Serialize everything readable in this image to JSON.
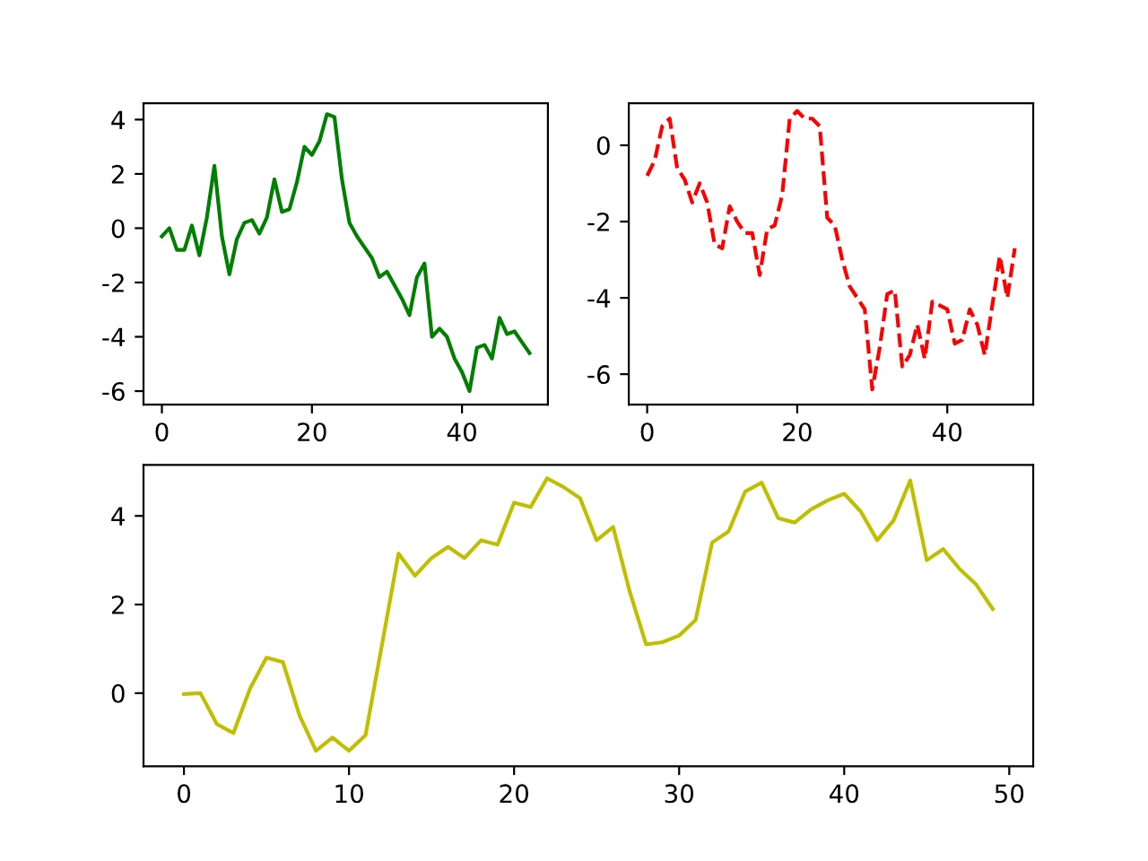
{
  "chart_data": [
    {
      "type": "line",
      "x": [
        0,
        1,
        2,
        3,
        4,
        5,
        6,
        7,
        8,
        9,
        10,
        11,
        12,
        13,
        14,
        15,
        16,
        17,
        18,
        19,
        20,
        21,
        22,
        23,
        24,
        25,
        26,
        27,
        28,
        29,
        30,
        31,
        32,
        33,
        34,
        35,
        36,
        37,
        38,
        39,
        40,
        41,
        42,
        43,
        44,
        45,
        46,
        47,
        48,
        49
      ],
      "series": [
        {
          "color": "#008000",
          "line_style": "solid",
          "values": [
            -0.3,
            0.0,
            -0.8,
            -0.8,
            0.1,
            -1.0,
            0.4,
            2.3,
            -0.3,
            -1.7,
            -0.4,
            0.2,
            0.3,
            -0.2,
            0.4,
            1.8,
            0.6,
            0.7,
            1.7,
            3.0,
            2.7,
            3.2,
            4.2,
            4.1,
            1.8,
            0.2,
            -0.3,
            -0.7,
            -1.1,
            -1.8,
            -1.6,
            -2.1,
            -2.6,
            -3.2,
            -1.8,
            -1.3,
            -4.0,
            -3.7,
            -4.0,
            -4.8,
            -5.3,
            -6.0,
            -4.4,
            -4.3,
            -4.8,
            -3.3,
            -3.9,
            -3.8,
            -4.2,
            -4.6
          ]
        }
      ],
      "xlim": [
        -2.45,
        51.45
      ],
      "xticks": [
        0,
        20,
        40
      ],
      "ylim": [
        -6.5,
        4.6
      ],
      "yticks": [
        -6,
        -4,
        -2,
        0,
        2,
        4
      ],
      "grid": false,
      "legend": false
    },
    {
      "type": "line",
      "x": [
        0,
        1,
        2,
        3,
        4,
        5,
        6,
        7,
        8,
        9,
        10,
        11,
        12,
        13,
        14,
        15,
        16,
        17,
        18,
        19,
        20,
        21,
        22,
        23,
        24,
        25,
        26,
        27,
        28,
        29,
        30,
        31,
        32,
        33,
        34,
        35,
        36,
        37,
        38,
        39,
        40,
        41,
        42,
        43,
        44,
        45,
        46,
        47,
        48,
        49
      ],
      "series": [
        {
          "color": "#ff0000",
          "line_style": "dashed",
          "values": [
            -0.8,
            -0.4,
            0.5,
            0.7,
            -0.6,
            -0.9,
            -1.5,
            -1.0,
            -1.5,
            -2.6,
            -2.7,
            -1.6,
            -2.0,
            -2.3,
            -2.3,
            -3.4,
            -2.2,
            -2.1,
            -1.3,
            0.7,
            0.9,
            0.7,
            0.7,
            0.5,
            -1.9,
            -2.1,
            -3.0,
            -3.7,
            -4.0,
            -4.3,
            -6.4,
            -5.3,
            -3.9,
            -3.8,
            -5.8,
            -5.5,
            -4.7,
            -5.6,
            -4.1,
            -4.2,
            -4.3,
            -5.2,
            -5.1,
            -4.3,
            -4.7,
            -5.5,
            -4.2,
            -2.9,
            -4.0,
            -2.7
          ]
        }
      ],
      "xlim": [
        -2.45,
        51.45
      ],
      "xticks": [
        0,
        20,
        40
      ],
      "ylim": [
        -6.8,
        1.1
      ],
      "yticks": [
        -6,
        -4,
        -2,
        0
      ],
      "grid": false,
      "legend": false
    },
    {
      "type": "line",
      "x": [
        0,
        1,
        2,
        3,
        4,
        5,
        6,
        7,
        8,
        9,
        10,
        11,
        12,
        13,
        14,
        15,
        16,
        17,
        18,
        19,
        20,
        21,
        22,
        23,
        24,
        25,
        26,
        27,
        28,
        29,
        30,
        31,
        32,
        33,
        34,
        35,
        36,
        37,
        38,
        39,
        40,
        41,
        42,
        43,
        44,
        45,
        46,
        47,
        48,
        49
      ],
      "series": [
        {
          "color": "#bfbf00",
          "line_style": "solid",
          "values": [
            -0.02,
            0.0,
            -0.7,
            -0.9,
            0.1,
            0.8,
            0.7,
            -0.5,
            -1.3,
            -1.0,
            -1.3,
            -0.95,
            1.1,
            3.15,
            2.65,
            3.05,
            3.3,
            3.05,
            3.45,
            3.35,
            4.3,
            4.2,
            4.85,
            4.65,
            4.4,
            3.45,
            3.75,
            2.3,
            1.1,
            1.15,
            1.3,
            1.65,
            3.4,
            3.65,
            4.55,
            4.75,
            3.95,
            3.85,
            4.15,
            4.35,
            4.5,
            4.1,
            3.45,
            3.9,
            4.8,
            3.0,
            3.25,
            2.8,
            2.45,
            1.9
          ]
        }
      ],
      "xlim": [
        -2.45,
        51.45
      ],
      "xticks": [
        0,
        10,
        20,
        30,
        40,
        50
      ],
      "ylim": [
        -1.65,
        5.15
      ],
      "yticks": [
        0,
        2,
        4
      ],
      "grid": false,
      "legend": false
    }
  ]
}
